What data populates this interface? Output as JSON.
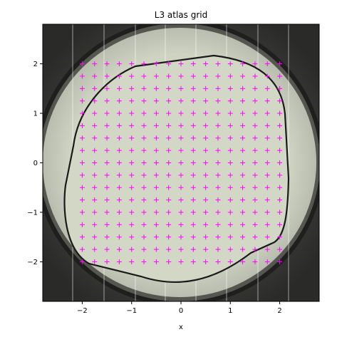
{
  "chart_data": {
    "type": "scatter",
    "title": "L3 atlas grid",
    "xlabel": "x",
    "ylabel": "",
    "xlim": [
      -2.8,
      2.8
    ],
    "ylim": [
      -2.8,
      2.8
    ],
    "x_ticks": [
      "−2",
      "−1",
      "0",
      "1",
      "2"
    ],
    "x_tick_values": [
      -2,
      -1,
      0,
      1,
      2
    ],
    "y_ticks": [
      "−2",
      "−1",
      "0",
      "1",
      "2"
    ],
    "y_tick_values": [
      -2,
      -1,
      0,
      1,
      2
    ],
    "grid": false,
    "marker": "+",
    "marker_color": "#ff00ff",
    "background": "grayscale microscope atlas image of a circular grid",
    "points": {
      "x_start": -2.0,
      "x_end": 2.0,
      "y_start": -2.0,
      "y_end": 2.0,
      "step": 0.25,
      "count_x": 17,
      "count_y": 17
    }
  }
}
